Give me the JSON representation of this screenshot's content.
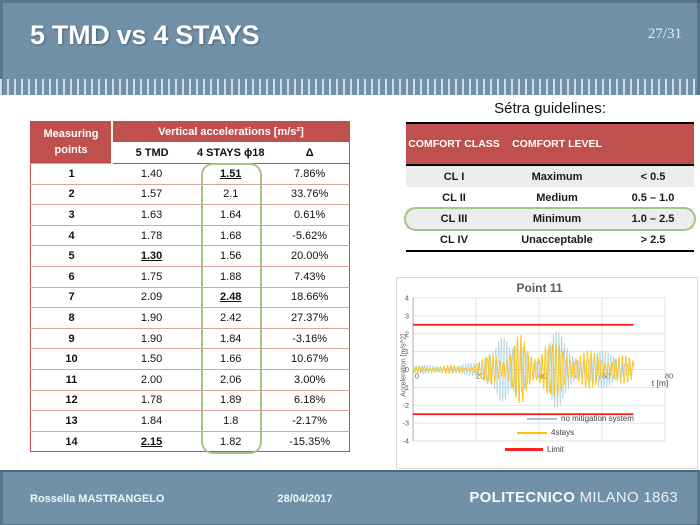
{
  "slide": {
    "title": "5 TMD vs 4 STAYS",
    "page": "27/31",
    "footer": {
      "author": "Rossella MASTRANGELO",
      "date": "28/04/2017",
      "brand_bold": "POLITECNICO",
      "brand_light": "MILANO 1863"
    }
  },
  "colors": {
    "header_bg": "#7191a8",
    "table_accent": "#c0504d",
    "highlight_green": "#a3c585",
    "series_blue": "#9cc9da",
    "series_yellow": "#ffc000",
    "limit_red": "#ff2020"
  },
  "acc_table": {
    "corner_header": "Measuring points",
    "span_header": "Vertical accelerations [m/s²]",
    "sub_headers": [
      "5 TMD",
      "4 STAYS ϕ18",
      "Δ"
    ],
    "rows": [
      {
        "p": "1",
        "tmd": "1.40",
        "stays": "1.51",
        "d": "7.86%",
        "stays_mark": true
      },
      {
        "p": "2",
        "tmd": "1.57",
        "stays": "2.1",
        "d": "33.76%"
      },
      {
        "p": "3",
        "tmd": "1.63",
        "stays": "1.64",
        "d": "0.61%"
      },
      {
        "p": "4",
        "tmd": "1.78",
        "stays": "1.68",
        "d": "-5.62%"
      },
      {
        "p": "5",
        "tmd": "1.30",
        "stays": "1.56",
        "d": "20.00%",
        "tmd_mark": true
      },
      {
        "p": "6",
        "tmd": "1.75",
        "stays": "1.88",
        "d": "7.43%"
      },
      {
        "p": "7",
        "tmd": "2.09",
        "stays": "2.48",
        "d": "18.66%",
        "stays_mark": true
      },
      {
        "p": "8",
        "tmd": "1.90",
        "stays": "2.42",
        "d": "27.37%"
      },
      {
        "p": "9",
        "tmd": "1.90",
        "stays": "1.84",
        "d": "-3.16%"
      },
      {
        "p": "10",
        "tmd": "1.50",
        "stays": "1.66",
        "d": "10.67%"
      },
      {
        "p": "11",
        "tmd": "2.00",
        "stays": "2.06",
        "d": "3.00%"
      },
      {
        "p": "12",
        "tmd": "1.78",
        "stays": "1.89",
        "d": "6.18%"
      },
      {
        "p": "13",
        "tmd": "1.84",
        "stays": "1.8",
        "d": "-2.17%"
      },
      {
        "p": "14",
        "tmd": "2.15",
        "stays": "1.82",
        "d": "-15.35%",
        "tmd_mark": true
      }
    ]
  },
  "setra": {
    "title": "Sétra guidelines:",
    "headers": [
      "COMFORT CLASS",
      "COMFORT LEVEL",
      ""
    ],
    "rows": [
      {
        "cls": "CL I",
        "level": "Maximum",
        "range": "< 0.5"
      },
      {
        "cls": "CL II",
        "level": "Medium",
        "range": "0.5 – 1.0"
      },
      {
        "cls": "CL III",
        "level": "Minimum",
        "range": "1.0 – 2.5"
      },
      {
        "cls": "CL IV",
        "level": "Unacceptable",
        "range": "> 2.5"
      }
    ],
    "highlight_row": 2
  },
  "chart_data": {
    "type": "line",
    "title": "Point 11",
    "xlabel": "t [m]",
    "ylabel": "Acceleration [m/s^2]",
    "xlim": [
      0,
      80
    ],
    "ylim": [
      -4,
      4
    ],
    "xticks": [
      0,
      20,
      40,
      60,
      80
    ],
    "yticks": [
      -4,
      -3,
      -2,
      -1,
      0,
      1,
      2,
      3,
      4
    ],
    "grid": true,
    "legend_position": "bottom-right",
    "series": [
      {
        "name": "no mitigation system",
        "color": "#9cc9da",
        "kind": "oscillation",
        "t_end": 70,
        "freq": 1.15,
        "mod_freq": 0.07,
        "phase": 0.0,
        "envelope": [
          [
            0,
            0.22
          ],
          [
            8,
            0.27
          ],
          [
            15,
            0.3
          ],
          [
            20,
            0.38
          ],
          [
            22,
            0.8
          ],
          [
            24,
            1.7
          ],
          [
            26,
            2.9
          ],
          [
            27.5,
            3.3
          ],
          [
            29,
            2.4
          ],
          [
            31,
            1.1
          ],
          [
            33,
            1.5
          ],
          [
            35,
            1.6
          ],
          [
            37,
            1.3
          ],
          [
            39,
            1.2
          ],
          [
            41,
            1.3
          ],
          [
            43,
            1.7
          ],
          [
            45,
            2.3
          ],
          [
            46.5,
            2.1
          ],
          [
            48,
            1.6
          ],
          [
            50,
            1.3
          ],
          [
            53,
            1.2
          ],
          [
            56,
            1.15
          ],
          [
            60,
            1.05
          ],
          [
            64,
            0.95
          ],
          [
            67,
            0.9
          ],
          [
            70,
            0.85
          ]
        ]
      },
      {
        "name": "4stays",
        "color": "#ffc000",
        "kind": "oscillation",
        "t_end": 70,
        "freq": 0.9,
        "mod_freq": 0.09,
        "phase": 1.3,
        "envelope": [
          [
            0,
            0.18
          ],
          [
            8,
            0.22
          ],
          [
            15,
            0.25
          ],
          [
            20,
            0.3
          ],
          [
            23,
            0.7
          ],
          [
            25,
            1.1
          ],
          [
            27,
            1.25
          ],
          [
            29,
            1.05
          ],
          [
            31,
            1.2
          ],
          [
            33,
            1.8
          ],
          [
            34.5,
            2.0
          ],
          [
            36,
            1.5
          ],
          [
            38,
            1.35
          ],
          [
            40,
            1.8
          ],
          [
            42,
            1.95
          ],
          [
            44,
            1.4
          ],
          [
            46,
            1.6
          ],
          [
            48,
            1.45
          ],
          [
            50,
            1.25
          ],
          [
            53,
            1.15
          ],
          [
            56,
            1.05
          ],
          [
            60,
            1.0
          ],
          [
            63,
            0.9
          ],
          [
            66,
            0.8
          ],
          [
            70,
            0.7
          ]
        ]
      },
      {
        "name": "Limit",
        "color": "#ff2020",
        "kind": "hline",
        "t_end": 70,
        "values": [
          2.5,
          -2.5
        ]
      }
    ]
  }
}
